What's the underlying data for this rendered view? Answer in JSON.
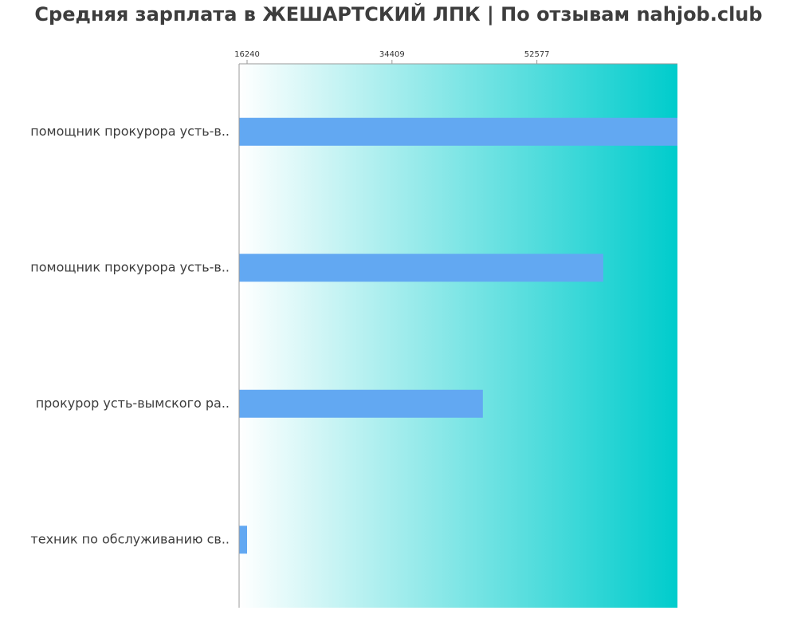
{
  "chart_data": {
    "type": "bar",
    "orientation": "horizontal",
    "title": "Средняя зарплата в ЖЕШАРТСКИЙ ЛПК | По отзывам nahjob.club",
    "xlabel": "",
    "ylabel": "",
    "categories": [
      "помощник прокурора усть-в..",
      "помощник прокурора усть-в..",
      "прокурор усть-вымского ра..",
      "техник по обслуживанию св.."
    ],
    "values": [
      76500,
      60900,
      45800,
      16240
    ],
    "x_ticks": [
      16240,
      34409,
      52577
    ],
    "x_tick_labels": [
      "16240",
      "34409",
      "52577"
    ],
    "xlim": [
      15240,
      70200
    ],
    "grid": false,
    "legend": "none",
    "colors": {
      "bar": "#62a8f2",
      "gradient_start": "#ffffff",
      "gradient_end": "#00cccc",
      "axis": "#999999",
      "text": "#3d3d3d"
    }
  }
}
